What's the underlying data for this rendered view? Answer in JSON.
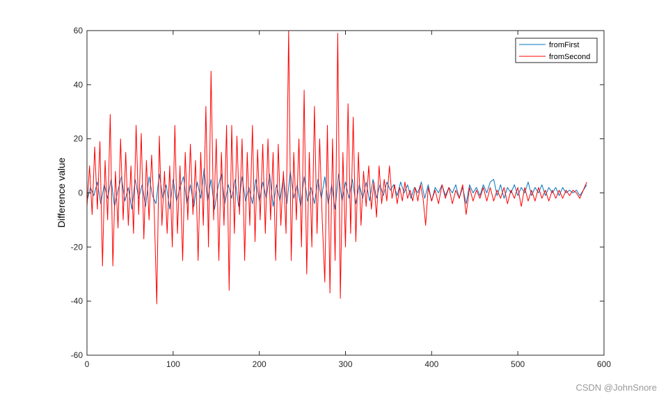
{
  "chart_data": {
    "type": "line",
    "title": "",
    "xlabel": "",
    "ylabel": "Difference value",
    "xlim": [
      0,
      600
    ],
    "ylim": [
      -60,
      60
    ],
    "xticks": [
      0,
      100,
      200,
      300,
      400,
      500,
      600
    ],
    "yticks": [
      -60,
      -40,
      -20,
      0,
      20,
      40,
      60
    ],
    "grid": false,
    "legend_position": "top-right",
    "series": [
      {
        "name": "fromFirst",
        "color": "#0072BD",
        "points": [
          [
            0,
            -3
          ],
          [
            4,
            2
          ],
          [
            8,
            -1
          ],
          [
            12,
            4
          ],
          [
            16,
            -4
          ],
          [
            20,
            3
          ],
          [
            24,
            -2
          ],
          [
            28,
            5
          ],
          [
            32,
            -5
          ],
          [
            36,
            1
          ],
          [
            40,
            6
          ],
          [
            44,
            -3
          ],
          [
            48,
            2
          ],
          [
            52,
            -6
          ],
          [
            56,
            5
          ],
          [
            60,
            -2
          ],
          [
            64,
            3
          ],
          [
            68,
            -5
          ],
          [
            72,
            6
          ],
          [
            76,
            -1
          ],
          [
            80,
            -4
          ],
          [
            84,
            7
          ],
          [
            88,
            -2
          ],
          [
            92,
            3
          ],
          [
            96,
            -6
          ],
          [
            100,
            5
          ],
          [
            104,
            -3
          ],
          [
            108,
            2
          ],
          [
            112,
            6
          ],
          [
            116,
            -4
          ],
          [
            120,
            3
          ],
          [
            124,
            -5
          ],
          [
            128,
            4
          ],
          [
            132,
            -2
          ],
          [
            136,
            9
          ],
          [
            140,
            -3
          ],
          [
            144,
            5
          ],
          [
            148,
            -6
          ],
          [
            152,
            2
          ],
          [
            156,
            7
          ],
          [
            160,
            -4
          ],
          [
            164,
            3
          ],
          [
            168,
            -2
          ],
          [
            172,
            5
          ],
          [
            176,
            -5
          ],
          [
            180,
            6
          ],
          [
            184,
            -3
          ],
          [
            188,
            2
          ],
          [
            192,
            -4
          ],
          [
            196,
            5
          ],
          [
            200,
            -3
          ],
          [
            204,
            4
          ],
          [
            208,
            -2
          ],
          [
            212,
            7
          ],
          [
            216,
            -5
          ],
          [
            220,
            3
          ],
          [
            224,
            -3
          ],
          [
            228,
            6
          ],
          [
            232,
            -4
          ],
          [
            236,
            8
          ],
          [
            240,
            -2
          ],
          [
            244,
            3
          ],
          [
            248,
            -5
          ],
          [
            252,
            6
          ],
          [
            256,
            -3
          ],
          [
            260,
            2
          ],
          [
            264,
            -4
          ],
          [
            268,
            5
          ],
          [
            272,
            -2
          ],
          [
            276,
            6
          ],
          [
            280,
            -4
          ],
          [
            284,
            3
          ],
          [
            288,
            -6
          ],
          [
            292,
            7
          ],
          [
            296,
            -3
          ],
          [
            300,
            4
          ],
          [
            304,
            -2
          ],
          [
            308,
            5
          ],
          [
            312,
            -4
          ],
          [
            316,
            3
          ],
          [
            320,
            -2
          ],
          [
            324,
            4
          ],
          [
            328,
            -3
          ],
          [
            332,
            5
          ],
          [
            336,
            -2
          ],
          [
            340,
            3
          ],
          [
            344,
            -1
          ],
          [
            348,
            4
          ],
          [
            352,
            1
          ],
          [
            356,
            3
          ],
          [
            360,
            -1
          ],
          [
            364,
            4
          ],
          [
            368,
            0
          ],
          [
            372,
            3
          ],
          [
            376,
            -2
          ],
          [
            380,
            2
          ],
          [
            384,
            0
          ],
          [
            388,
            4
          ],
          [
            392,
            -2
          ],
          [
            396,
            3
          ],
          [
            400,
            -3
          ],
          [
            404,
            2
          ],
          [
            408,
            0
          ],
          [
            412,
            3
          ],
          [
            416,
            -1
          ],
          [
            420,
            2
          ],
          [
            424,
            0
          ],
          [
            428,
            3
          ],
          [
            432,
            -2
          ],
          [
            436,
            2
          ],
          [
            440,
            -4
          ],
          [
            444,
            3
          ],
          [
            448,
            0
          ],
          [
            452,
            2
          ],
          [
            456,
            -1
          ],
          [
            460,
            3
          ],
          [
            464,
            0
          ],
          [
            468,
            4
          ],
          [
            472,
            5
          ],
          [
            476,
            -1
          ],
          [
            480,
            3
          ],
          [
            484,
            -2
          ],
          [
            488,
            2
          ],
          [
            492,
            0
          ],
          [
            496,
            3
          ],
          [
            500,
            -1
          ],
          [
            504,
            2
          ],
          [
            508,
            0
          ],
          [
            512,
            4
          ],
          [
            516,
            -1
          ],
          [
            520,
            2
          ],
          [
            524,
            0
          ],
          [
            528,
            3
          ],
          [
            532,
            -1
          ],
          [
            536,
            2
          ],
          [
            540,
            0
          ],
          [
            544,
            2
          ],
          [
            548,
            -1
          ],
          [
            552,
            2
          ],
          [
            556,
            0
          ],
          [
            560,
            1
          ],
          [
            564,
            0
          ],
          [
            568,
            1
          ],
          [
            572,
            -1
          ],
          [
            576,
            1
          ],
          [
            580,
            3
          ]
        ]
      },
      {
        "name": "fromSecond",
        "color": "#FF0000",
        "points": [
          [
            0,
            -5
          ],
          [
            3,
            10
          ],
          [
            6,
            -8
          ],
          [
            9,
            17
          ],
          [
            12,
            -6
          ],
          [
            15,
            19
          ],
          [
            18,
            -27
          ],
          [
            21,
            12
          ],
          [
            24,
            -10
          ],
          [
            27,
            29
          ],
          [
            30,
            -27
          ],
          [
            33,
            8
          ],
          [
            36,
            -13
          ],
          [
            39,
            20
          ],
          [
            42,
            -10
          ],
          [
            45,
            15
          ],
          [
            48,
            -12
          ],
          [
            51,
            10
          ],
          [
            54,
            -15
          ],
          [
            57,
            25
          ],
          [
            60,
            -8
          ],
          [
            63,
            22
          ],
          [
            66,
            -17
          ],
          [
            69,
            12
          ],
          [
            72,
            -10
          ],
          [
            75,
            14
          ],
          [
            78,
            -6
          ],
          [
            81,
            -41
          ],
          [
            84,
            21
          ],
          [
            87,
            -12
          ],
          [
            90,
            8
          ],
          [
            93,
            -15
          ],
          [
            96,
            10
          ],
          [
            99,
            -20
          ],
          [
            102,
            25
          ],
          [
            105,
            -15
          ],
          [
            108,
            10
          ],
          [
            111,
            -25
          ],
          [
            114,
            15
          ],
          [
            117,
            -10
          ],
          [
            120,
            18
          ],
          [
            123,
            -8
          ],
          [
            126,
            12
          ],
          [
            129,
            -25
          ],
          [
            132,
            15
          ],
          [
            135,
            -12
          ],
          [
            138,
            32
          ],
          [
            141,
            -20
          ],
          [
            144,
            45
          ],
          [
            147,
            -10
          ],
          [
            150,
            20
          ],
          [
            153,
            -25
          ],
          [
            156,
            15
          ],
          [
            159,
            -12
          ],
          [
            162,
            25
          ],
          [
            165,
            -36
          ],
          [
            168,
            25
          ],
          [
            171,
            -15
          ],
          [
            174,
            21
          ],
          [
            177,
            -8
          ],
          [
            180,
            20
          ],
          [
            183,
            -25
          ],
          [
            186,
            15
          ],
          [
            189,
            -12
          ],
          [
            192,
            25
          ],
          [
            195,
            -18
          ],
          [
            198,
            16
          ],
          [
            201,
            -10
          ],
          [
            204,
            18
          ],
          [
            207,
            -15
          ],
          [
            210,
            20
          ],
          [
            213,
            -10
          ],
          [
            216,
            15
          ],
          [
            219,
            -25
          ],
          [
            222,
            18
          ],
          [
            225,
            -12
          ],
          [
            228,
            8
          ],
          [
            231,
            -15
          ],
          [
            234,
            60
          ],
          [
            237,
            -25
          ],
          [
            240,
            15
          ],
          [
            243,
            -10
          ],
          [
            246,
            20
          ],
          [
            249,
            -20
          ],
          [
            252,
            38
          ],
          [
            255,
            -30
          ],
          [
            258,
            15
          ],
          [
            261,
            -20
          ],
          [
            264,
            32
          ],
          [
            267,
            -15
          ],
          [
            270,
            20
          ],
          [
            273,
            -10
          ],
          [
            276,
            -33
          ],
          [
            279,
            25
          ],
          [
            282,
            -37
          ],
          [
            285,
            20
          ],
          [
            288,
            -25
          ],
          [
            291,
            59
          ],
          [
            294,
            -39
          ],
          [
            297,
            15
          ],
          [
            300,
            -20
          ],
          [
            303,
            33
          ],
          [
            306,
            -15
          ],
          [
            309,
            28
          ],
          [
            312,
            -18
          ],
          [
            315,
            15
          ],
          [
            318,
            -12
          ],
          [
            321,
            8
          ],
          [
            324,
            -5
          ],
          [
            327,
            10
          ],
          [
            330,
            -6
          ],
          [
            333,
            4
          ],
          [
            336,
            -9
          ],
          [
            339,
            10
          ],
          [
            342,
            -4
          ],
          [
            345,
            5
          ],
          [
            348,
            -3
          ],
          [
            351,
            10
          ],
          [
            354,
            -2
          ],
          [
            357,
            3
          ],
          [
            360,
            -4
          ],
          [
            363,
            2
          ],
          [
            366,
            -3
          ],
          [
            369,
            4
          ],
          [
            372,
            -2
          ],
          [
            375,
            1
          ],
          [
            378,
            -3
          ],
          [
            381,
            2
          ],
          [
            384,
            -3
          ],
          [
            387,
            3
          ],
          [
            390,
            -2
          ],
          [
            393,
            -12
          ],
          [
            396,
            2
          ],
          [
            400,
            -3
          ],
          [
            404,
            1
          ],
          [
            408,
            -4
          ],
          [
            412,
            3
          ],
          [
            416,
            -2
          ],
          [
            420,
            2
          ],
          [
            424,
            -4
          ],
          [
            428,
            1
          ],
          [
            432,
            -2
          ],
          [
            436,
            3
          ],
          [
            440,
            -8
          ],
          [
            444,
            2
          ],
          [
            448,
            -3
          ],
          [
            452,
            1
          ],
          [
            456,
            -2
          ],
          [
            460,
            2
          ],
          [
            464,
            -3
          ],
          [
            468,
            2
          ],
          [
            472,
            -3
          ],
          [
            476,
            1
          ],
          [
            480,
            -2
          ],
          [
            484,
            2
          ],
          [
            488,
            -4
          ],
          [
            492,
            1
          ],
          [
            496,
            -2
          ],
          [
            500,
            2
          ],
          [
            504,
            -5
          ],
          [
            508,
            2
          ],
          [
            512,
            -3
          ],
          [
            516,
            1
          ],
          [
            520,
            -3
          ],
          [
            524,
            2
          ],
          [
            528,
            -2
          ],
          [
            532,
            1
          ],
          [
            536,
            -3
          ],
          [
            540,
            1
          ],
          [
            544,
            -2
          ],
          [
            548,
            1
          ],
          [
            552,
            -2
          ],
          [
            556,
            1
          ],
          [
            560,
            -1
          ],
          [
            564,
            1
          ],
          [
            568,
            0
          ],
          [
            572,
            -2
          ],
          [
            576,
            1
          ],
          [
            580,
            4
          ]
        ]
      }
    ]
  },
  "watermark": "CSDN @JohnSnore"
}
